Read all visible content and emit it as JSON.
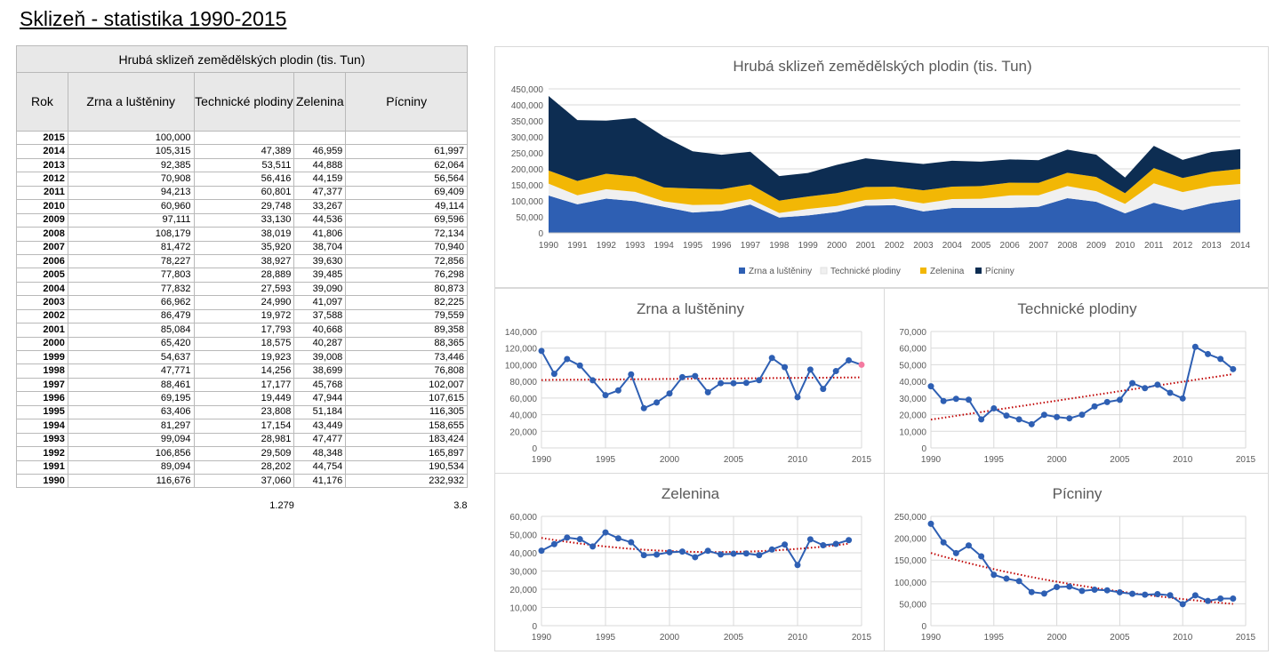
{
  "page_title": "Sklizeň - statistika 1990-2015",
  "table": {
    "title": "Hrubá sklizeň zemědělských plodin (tis. Tun)",
    "headers": [
      "Rok",
      "Zrna a luštěniny",
      "Technické plodiny",
      "Zelenina",
      "Pícniny"
    ],
    "rows": [
      [
        "2015",
        "100,000",
        "",
        "",
        ""
      ],
      [
        "2014",
        "105,315",
        "47,389",
        "46,959",
        "61,997"
      ],
      [
        "2013",
        "92,385",
        "53,511",
        "44,888",
        "62,064"
      ],
      [
        "2012",
        "70,908",
        "56,416",
        "44,159",
        "56,564"
      ],
      [
        "2011",
        "94,213",
        "60,801",
        "47,377",
        "69,409"
      ],
      [
        "2010",
        "60,960",
        "29,748",
        "33,267",
        "49,114"
      ],
      [
        "2009",
        "97,111",
        "33,130",
        "44,536",
        "69,596"
      ],
      [
        "2008",
        "108,179",
        "38,019",
        "41,806",
        "72,134"
      ],
      [
        "2007",
        "81,472",
        "35,920",
        "38,704",
        "70,940"
      ],
      [
        "2006",
        "78,227",
        "38,927",
        "39,630",
        "72,856"
      ],
      [
        "2005",
        "77,803",
        "28,889",
        "39,485",
        "76,298"
      ],
      [
        "2004",
        "77,832",
        "27,593",
        "39,090",
        "80,873"
      ],
      [
        "2003",
        "66,962",
        "24,990",
        "41,097",
        "82,225"
      ],
      [
        "2002",
        "86,479",
        "19,972",
        "37,588",
        "79,559"
      ],
      [
        "2001",
        "85,084",
        "17,793",
        "40,668",
        "89,358"
      ],
      [
        "2000",
        "65,420",
        "18,575",
        "40,287",
        "88,365"
      ],
      [
        "1999",
        "54,637",
        "19,923",
        "39,008",
        "73,446"
      ],
      [
        "1998",
        "47,771",
        "14,256",
        "38,699",
        "76,808"
      ],
      [
        "1997",
        "88,461",
        "17,177",
        "45,768",
        "102,007"
      ],
      [
        "1996",
        "69,195",
        "19,449",
        "47,944",
        "107,615"
      ],
      [
        "1995",
        "63,406",
        "23,808",
        "51,184",
        "116,305"
      ],
      [
        "1994",
        "81,297",
        "17,154",
        "43,449",
        "158,655"
      ],
      [
        "1993",
        "99,094",
        "28,981",
        "47,477",
        "183,424"
      ],
      [
        "1992",
        "106,856",
        "29,509",
        "48,348",
        "165,897"
      ],
      [
        "1991",
        "89,094",
        "28,202",
        "44,754",
        "190,534"
      ],
      [
        "1990",
        "116,676",
        "37,060",
        "41,176",
        "232,932"
      ]
    ],
    "footer": [
      "",
      "",
      "1.279",
      "",
      "3.8"
    ]
  },
  "chart_data": [
    {
      "type": "area",
      "stacked": true,
      "title": "Hrubá sklizeň zemědělských plodin (tis. Tun)",
      "x": [
        1990,
        1991,
        1992,
        1993,
        1994,
        1995,
        1996,
        1997,
        1998,
        1999,
        2000,
        2001,
        2002,
        2003,
        2004,
        2005,
        2006,
        2007,
        2008,
        2009,
        2010,
        2011,
        2012,
        2013,
        2014
      ],
      "ylim": [
        0,
        450000
      ],
      "ytick_labels": [
        "0",
        "50,000",
        "100,000",
        "150,000",
        "200,000",
        "250,000",
        "300,000",
        "350,000",
        "400,000",
        "450,000"
      ],
      "legend": "bottom",
      "grid": true,
      "series": [
        {
          "name": "Zrna a luštěniny",
          "color": "#2e5fb3",
          "values": [
            116676,
            89094,
            106856,
            99094,
            81297,
            63406,
            69195,
            88461,
            47771,
            54637,
            65420,
            85084,
            86479,
            66962,
            77832,
            77803,
            78227,
            81472,
            108179,
            97111,
            60960,
            94213,
            70908,
            92385,
            105315
          ]
        },
        {
          "name": "Technické plodiny",
          "color": "#f0f0f0",
          "values": [
            37060,
            28202,
            29509,
            28981,
            17154,
            23808,
            19449,
            17177,
            14256,
            19923,
            18575,
            17793,
            19972,
            24990,
            27593,
            28889,
            38927,
            35920,
            38019,
            33130,
            29748,
            60801,
            56416,
            53511,
            47389
          ]
        },
        {
          "name": "Zelenina",
          "color": "#f2b705",
          "values": [
            41176,
            44754,
            48348,
            47477,
            43449,
            51184,
            47944,
            45768,
            38699,
            39008,
            40287,
            40668,
            37588,
            41097,
            39090,
            39485,
            39630,
            38704,
            41806,
            44536,
            33267,
            47377,
            44159,
            44888,
            46959
          ]
        },
        {
          "name": "Pícniny",
          "color": "#0d2d52",
          "values": [
            232932,
            190534,
            165897,
            183424,
            158655,
            116305,
            107615,
            102007,
            76808,
            73446,
            88365,
            89358,
            79559,
            82225,
            80873,
            76298,
            72856,
            70940,
            72134,
            69596,
            49114,
            69409,
            56564,
            62064,
            61997
          ]
        }
      ]
    },
    {
      "type": "scatter",
      "title": "Zrna a luštěniny",
      "color": "#2e5fb3",
      "trendline": "linear",
      "trend_color": "#c00000",
      "highlight_color": "#f47aa0",
      "highlight_x": 2015,
      "x": [
        1990,
        1991,
        1992,
        1993,
        1994,
        1995,
        1996,
        1997,
        1998,
        1999,
        2000,
        2001,
        2002,
        2003,
        2004,
        2005,
        2006,
        2007,
        2008,
        2009,
        2010,
        2011,
        2012,
        2013,
        2014,
        2015
      ],
      "y": [
        116676,
        89094,
        106856,
        99094,
        81297,
        63406,
        69195,
        88461,
        47771,
        54637,
        65420,
        85084,
        86479,
        66962,
        77832,
        77803,
        78227,
        81472,
        108179,
        97111,
        60960,
        94213,
        70908,
        92385,
        105315,
        100000
      ],
      "xlim": [
        1990,
        2015
      ],
      "ylim": [
        0,
        140000
      ],
      "ytick_labels": [
        "0",
        "20,000",
        "40,000",
        "60,000",
        "80,000",
        "100,000",
        "120,000",
        "140,000"
      ],
      "xtick_labels": [
        "1990",
        "1995",
        "2000",
        "2005",
        "2010",
        "2015"
      ]
    },
    {
      "type": "scatter",
      "title": "Technické plodiny",
      "color": "#2e5fb3",
      "trendline": "linear",
      "trend_color": "#c00000",
      "x": [
        1990,
        1991,
        1992,
        1993,
        1994,
        1995,
        1996,
        1997,
        1998,
        1999,
        2000,
        2001,
        2002,
        2003,
        2004,
        2005,
        2006,
        2007,
        2008,
        2009,
        2010,
        2011,
        2012,
        2013,
        2014
      ],
      "y": [
        37060,
        28202,
        29509,
        28981,
        17154,
        23808,
        19449,
        17177,
        14256,
        19923,
        18575,
        17793,
        19972,
        24990,
        27593,
        28889,
        38927,
        35920,
        38019,
        33130,
        29748,
        60801,
        56416,
        53511,
        47389
      ],
      "xlim": [
        1990,
        2015
      ],
      "ylim": [
        0,
        70000
      ],
      "ytick_labels": [
        "0",
        "10,000",
        "20,000",
        "30,000",
        "40,000",
        "50,000",
        "60,000",
        "70,000"
      ],
      "xtick_labels": [
        "1990",
        "1995",
        "2000",
        "2005",
        "2010",
        "2015"
      ]
    },
    {
      "type": "scatter",
      "title": "Zelenina",
      "color": "#2e5fb3",
      "trendline": "polynomial",
      "trend_color": "#c00000",
      "x": [
        1990,
        1991,
        1992,
        1993,
        1994,
        1995,
        1996,
        1997,
        1998,
        1999,
        2000,
        2001,
        2002,
        2003,
        2004,
        2005,
        2006,
        2007,
        2008,
        2009,
        2010,
        2011,
        2012,
        2013,
        2014
      ],
      "y": [
        41176,
        44754,
        48348,
        47477,
        43449,
        51184,
        47944,
        45768,
        38699,
        39008,
        40287,
        40668,
        37588,
        41097,
        39090,
        39485,
        39630,
        38704,
        41806,
        44536,
        33267,
        47377,
        44159,
        44888,
        46959
      ],
      "xlim": [
        1990,
        2015
      ],
      "ylim": [
        0,
        60000
      ],
      "ytick_labels": [
        "0",
        "10,000",
        "20,000",
        "30,000",
        "40,000",
        "50,000",
        "60,000"
      ],
      "xtick_labels": [
        "1990",
        "1995",
        "2000",
        "2005",
        "2010",
        "2015"
      ]
    },
    {
      "type": "scatter",
      "title": "Pícniny",
      "color": "#2e5fb3",
      "trendline": "exponential",
      "trend_color": "#c00000",
      "x": [
        1990,
        1991,
        1992,
        1993,
        1994,
        1995,
        1996,
        1997,
        1998,
        1999,
        2000,
        2001,
        2002,
        2003,
        2004,
        2005,
        2006,
        2007,
        2008,
        2009,
        2010,
        2011,
        2012,
        2013,
        2014
      ],
      "y": [
        232932,
        190534,
        165897,
        183424,
        158655,
        116305,
        107615,
        102007,
        76808,
        73446,
        88365,
        89358,
        79559,
        82225,
        80873,
        76298,
        72856,
        70940,
        72134,
        69596,
        49114,
        69409,
        56564,
        62064,
        61997
      ],
      "xlim": [
        1990,
        2015
      ],
      "ylim": [
        0,
        250000
      ],
      "ytick_labels": [
        "0",
        "50,000",
        "100,000",
        "150,000",
        "200,000",
        "250,000"
      ],
      "xtick_labels": [
        "1990",
        "1995",
        "2000",
        "2005",
        "2010",
        "2015"
      ]
    }
  ]
}
